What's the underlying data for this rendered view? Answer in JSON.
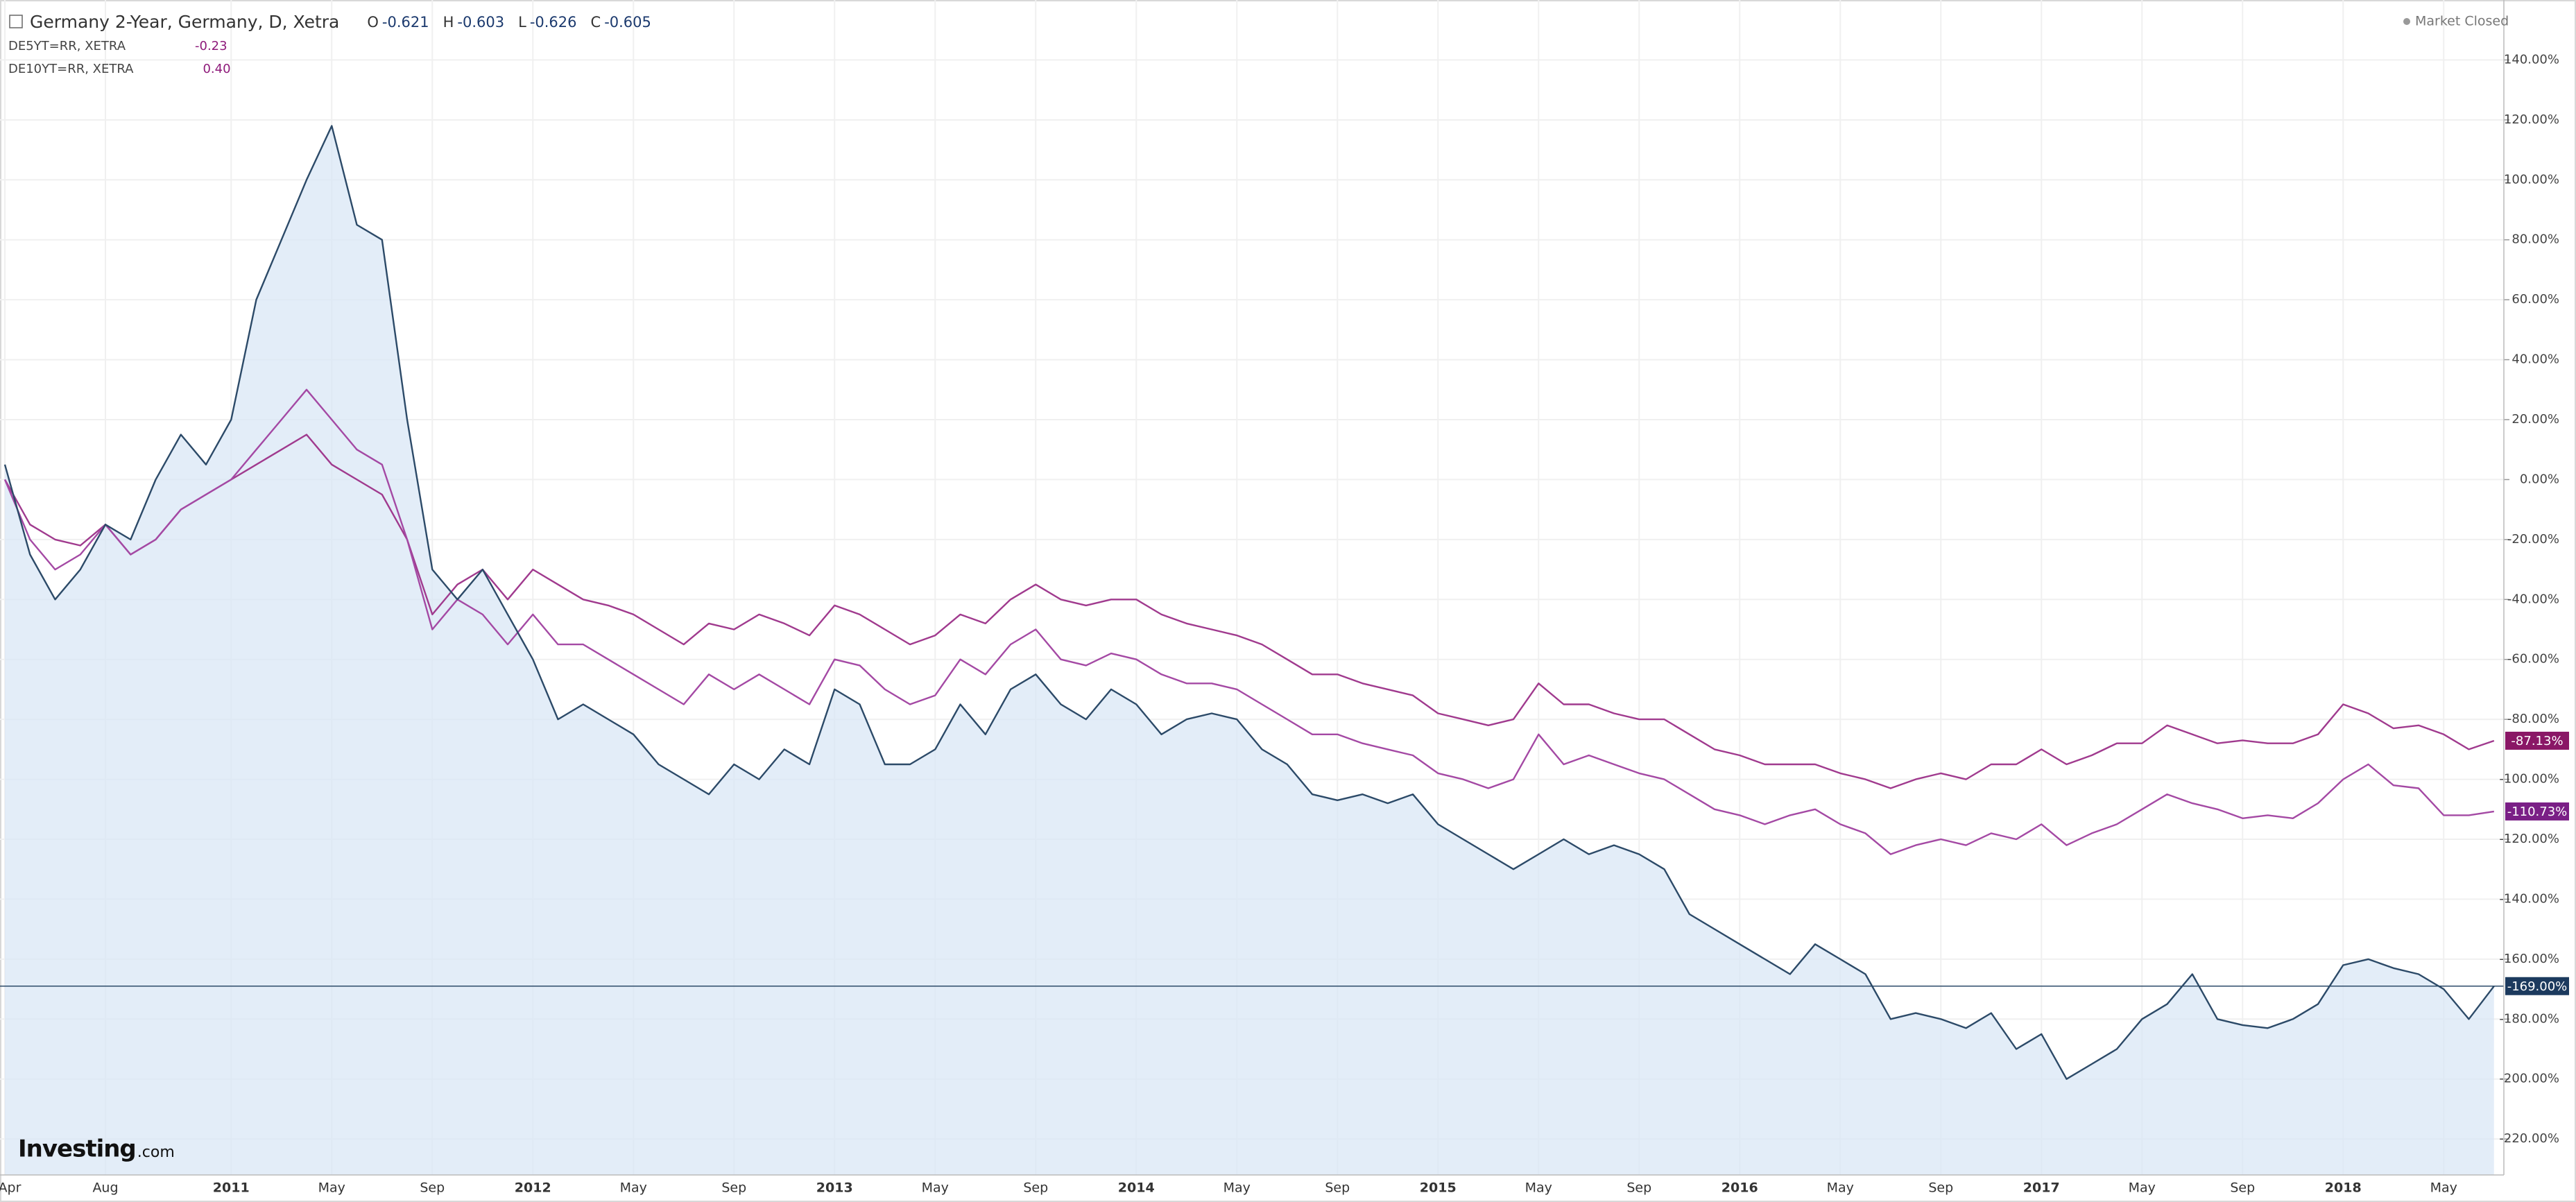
{
  "chart_data": {
    "type": "line",
    "status": "Market Closed",
    "logo": {
      "name": "Investing",
      "suffix": ".com"
    },
    "ohlc": [
      {
        "key": "O",
        "value": "-0.621"
      },
      {
        "key": "H",
        "value": "-0.603"
      },
      {
        "key": "L",
        "value": "-0.626"
      },
      {
        "key": "C",
        "value": "-0.605"
      }
    ],
    "categories": [
      "Apr",
      null,
      null,
      null,
      "Aug",
      null,
      null,
      null,
      null,
      "2011",
      null,
      null,
      null,
      "May",
      null,
      null,
      null,
      "Sep",
      null,
      null,
      null,
      "2012",
      null,
      null,
      null,
      "May",
      null,
      null,
      null,
      "Sep",
      null,
      null,
      null,
      "2013",
      null,
      null,
      null,
      "May",
      null,
      null,
      null,
      "Sep",
      null,
      null,
      null,
      "2014",
      null,
      null,
      null,
      "May",
      null,
      null,
      null,
      "Sep",
      null,
      null,
      null,
      "2015",
      null,
      null,
      null,
      "May",
      null,
      null,
      null,
      "Sep",
      null,
      null,
      null,
      "2016",
      null,
      null,
      null,
      "May",
      null,
      null,
      null,
      "Sep",
      null,
      null,
      null,
      "2017",
      null,
      null,
      null,
      "May",
      null,
      null,
      null,
      "Sep",
      null,
      null,
      null,
      "2018",
      null,
      null,
      null,
      "May",
      null,
      null
    ],
    "ylim": [
      -232,
      160
    ],
    "yticks": [
      {
        "value": 140,
        "label": "140.00%"
      },
      {
        "value": 120,
        "label": "120.00%"
      },
      {
        "value": 100,
        "label": "100.00%"
      },
      {
        "value": 80,
        "label": "80.00%"
      },
      {
        "value": 60,
        "label": "60.00%"
      },
      {
        "value": 40,
        "label": "40.00%"
      },
      {
        "value": 20,
        "label": "20.00%"
      },
      {
        "value": 0,
        "label": "0.00%"
      },
      {
        "value": -20,
        "label": "-20.00%"
      },
      {
        "value": -40,
        "label": "-40.00%"
      },
      {
        "value": -60,
        "label": "-60.00%"
      },
      {
        "value": -80,
        "label": "-80.00%"
      },
      {
        "value": -100,
        "label": "-100.00%"
      },
      {
        "value": -120,
        "label": "-120.00%"
      },
      {
        "value": -140,
        "label": "-140.00%"
      },
      {
        "value": -160,
        "label": "-160.00%"
      },
      {
        "value": -180,
        "label": "-180.00%"
      },
      {
        "value": -200,
        "label": "-200.00%"
      },
      {
        "value": -220,
        "label": "-220.00%"
      }
    ],
    "grid": true,
    "series": [
      {
        "name": "Germany 2-Year, Germany, D, Xetra",
        "color": "#2c4a68",
        "fill": "#d9e7f6",
        "badge_color": "#1c3a5e",
        "last_label": "-169.00%",
        "values": [
          5,
          -25,
          -40,
          -30,
          -15,
          -20,
          0,
          15,
          5,
          20,
          60,
          80,
          100,
          118,
          85,
          80,
          20,
          -30,
          -40,
          -30,
          -45,
          -60,
          -80,
          -75,
          -80,
          -85,
          -95,
          -100,
          -105,
          -95,
          -100,
          -90,
          -95,
          -70,
          -75,
          -95,
          -95,
          -90,
          -75,
          -85,
          -70,
          -65,
          -75,
          -80,
          -70,
          -75,
          -85,
          -80,
          -78,
          -80,
          -90,
          -95,
          -105,
          -107,
          -105,
          -108,
          -105,
          -115,
          -120,
          -125,
          -130,
          -125,
          -120,
          -125,
          -122,
          -125,
          -130,
          -145,
          -150,
          -155,
          -160,
          -165,
          -155,
          -160,
          -165,
          -180,
          -178,
          -180,
          -183,
          -178,
          -190,
          -185,
          -200,
          -195,
          -190,
          -180,
          -175,
          -165,
          -180,
          -182,
          -183,
          -180,
          -175,
          -162,
          -160,
          -163,
          -165,
          -170,
          -180,
          -169
        ]
      },
      {
        "name": "DE5YT=RR, XETRA",
        "legend_value": "-0.23",
        "color": "#a449a4",
        "badge_color": "#7a1f86",
        "last_label": "-110.73%",
        "values": [
          0,
          -20,
          -30,
          -25,
          -15,
          -25,
          -20,
          -10,
          -5,
          0,
          10,
          20,
          30,
          20,
          10,
          5,
          -20,
          -50,
          -40,
          -45,
          -55,
          -45,
          -55,
          -55,
          -60,
          -65,
          -70,
          -75,
          -65,
          -70,
          -65,
          -70,
          -75,
          -60,
          -62,
          -70,
          -75,
          -72,
          -60,
          -65,
          -55,
          -50,
          -60,
          -62,
          -58,
          -60,
          -65,
          -68,
          -68,
          -70,
          -75,
          -80,
          -85,
          -85,
          -88,
          -90,
          -92,
          -98,
          -100,
          -103,
          -100,
          -85,
          -95,
          -92,
          -95,
          -98,
          -100,
          -105,
          -110,
          -112,
          -115,
          -112,
          -110,
          -115,
          -118,
          -125,
          -122,
          -120,
          -122,
          -118,
          -120,
          -115,
          -122,
          -118,
          -115,
          -110,
          -105,
          -108,
          -110,
          -113,
          -112,
          -113,
          -108,
          -100,
          -95,
          -102,
          -103,
          -112,
          -112,
          -110.73
        ]
      },
      {
        "name": "DE10YT=RR, XETRA",
        "legend_value": "0.40",
        "color": "#a03a8e",
        "badge_color": "#8a1766",
        "last_label": "-87.13%",
        "values": [
          0,
          -15,
          -20,
          -22,
          -15,
          -25,
          -20,
          -10,
          -5,
          0,
          5,
          10,
          15,
          5,
          0,
          -5,
          -20,
          -45,
          -35,
          -30,
          -40,
          -30,
          -35,
          -40,
          -42,
          -45,
          -50,
          -55,
          -48,
          -50,
          -45,
          -48,
          -52,
          -42,
          -45,
          -50,
          -55,
          -52,
          -45,
          -48,
          -40,
          -35,
          -40,
          -42,
          -40,
          -40,
          -45,
          -48,
          -50,
          -52,
          -55,
          -60,
          -65,
          -65,
          -68,
          -70,
          -72,
          -78,
          -80,
          -82,
          -80,
          -68,
          -75,
          -75,
          -78,
          -80,
          -80,
          -85,
          -90,
          -92,
          -95,
          -95,
          -95,
          -98,
          -100,
          -103,
          -100,
          -98,
          -100,
          -95,
          -95,
          -90,
          -95,
          -92,
          -88,
          -88,
          -82,
          -85,
          -88,
          -87,
          -88,
          -88,
          -85,
          -75,
          -78,
          -83,
          -82,
          -85,
          -90,
          -87.13
        ]
      }
    ]
  }
}
